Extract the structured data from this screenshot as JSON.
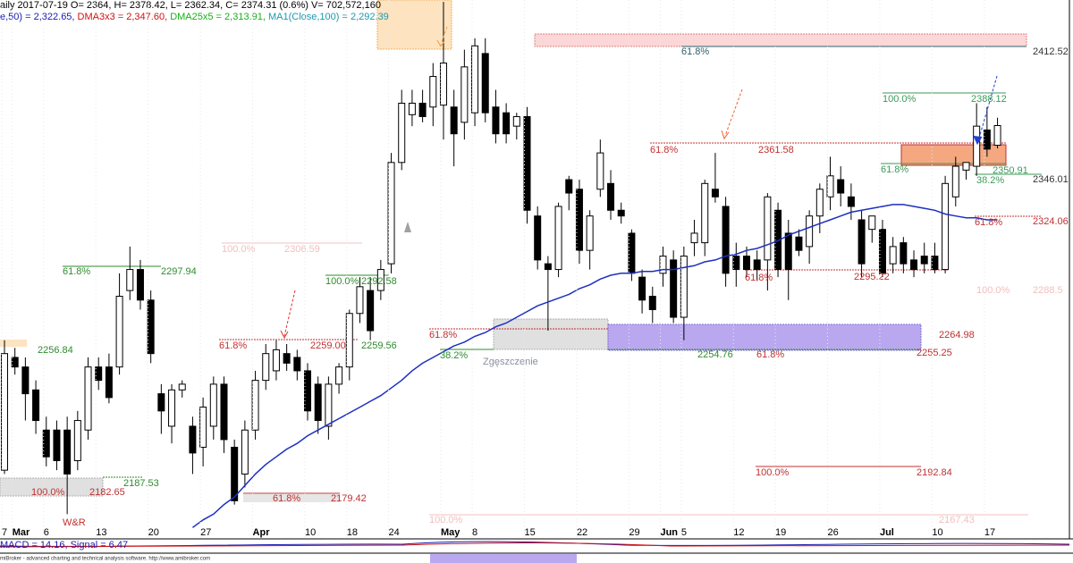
{
  "chart_data": {
    "type": "candlestick",
    "header": [
      [
        {
          "text": "aily 2017-07-19 O= 2364, H= 2378.42, L= 2362.34, C= 2374.31 (0.6%) V= 702,572,160",
          "color": "#000000"
        }
      ],
      [
        {
          "text": "e,50) = 2,322.65, ",
          "color": "#1a1ab0"
        },
        {
          "text": "DMA3x3 = 2,347.60, ",
          "color": "#d01010"
        },
        {
          "text": "DMA25x5 = 2,313.91, ",
          "color": "#18b018"
        },
        {
          "text": "MA1(Close,100) = 2,292.39",
          "color": "#1a9ab0"
        }
      ]
    ],
    "categories": [
      "7",
      "Mar",
      null,
      null,
      "6",
      null,
      null,
      null,
      null,
      "13",
      null,
      null,
      null,
      null,
      "20",
      null,
      null,
      null,
      null,
      "27",
      null,
      null,
      null,
      null,
      "Apr",
      null,
      null,
      null,
      null,
      "10",
      null,
      null,
      null,
      "18",
      null,
      null,
      null,
      "24",
      null,
      null,
      null,
      null,
      "May",
      null,
      null,
      "8",
      null,
      null,
      null,
      null,
      "15",
      null,
      null,
      null,
      null,
      "22",
      null,
      null,
      null,
      null,
      "29",
      null,
      null,
      "Jun",
      null,
      "5",
      null,
      null,
      null,
      null,
      "12",
      null,
      null,
      null,
      "19",
      null,
      null,
      null,
      null,
      "26",
      null,
      null,
      null,
      null,
      "Jul",
      null,
      null,
      null,
      null,
      "10",
      null,
      null,
      null,
      null,
      "17",
      null
    ],
    "open": [
      2194,
      2253,
      2248,
      2236,
      2215,
      2215,
      2215,
      2199,
      2215,
      2248,
      2248,
      2248,
      2288,
      2299,
      2283,
      2234,
      2217,
      2236,
      2217,
      2206,
      2217,
      2239,
      2206,
      2192,
      2215,
      2241,
      2246,
      2255,
      2253,
      2246,
      2239,
      2217,
      2239,
      2248,
      2276,
      2288,
      2288,
      2302,
      2355,
      2380,
      2386,
      2384,
      2385,
      2384,
      2376,
      2381,
      2412,
      2384,
      2381,
      2374,
      2379,
      2327,
      2302,
      2299,
      2346,
      2341,
      2309,
      2341,
      2344,
      2330,
      2318,
      2295,
      2285,
      2297,
      2304,
      2274,
      2313,
      2313,
      2341,
      2332,
      2306,
      2306,
      2304,
      2304,
      2330,
      2318,
      2316,
      2311,
      2327,
      2337,
      2346,
      2337,
      2325,
      2320,
      2320,
      2302,
      2313,
      2304,
      2306,
      2306,
      2299,
      2337,
      2351,
      2353,
      2372,
      2364
    ],
    "high": [
      2262,
      2258,
      2253,
      2241,
      2222,
      2220,
      2222,
      2225,
      2253,
      2253,
      2255,
      2297,
      2311,
      2304,
      2288,
      2239,
      2239,
      2241,
      2222,
      2232,
      2243,
      2243,
      2210,
      2220,
      2246,
      2260,
      2262,
      2260,
      2257,
      2250,
      2243,
      2243,
      2250,
      2278,
      2295,
      2295,
      2304,
      2360,
      2393,
      2393,
      2393,
      2407,
      2439,
      2393,
      2414,
      2420,
      2420,
      2393,
      2386,
      2381,
      2384,
      2332,
      2306,
      2334,
      2348,
      2346,
      2330,
      2367,
      2351,
      2334,
      2320,
      2299,
      2290,
      2311,
      2309,
      2311,
      2325,
      2346,
      2360,
      2337,
      2313,
      2311,
      2309,
      2339,
      2334,
      2325,
      2320,
      2330,
      2344,
      2358,
      2353,
      2344,
      2330,
      2327,
      2325,
      2316,
      2316,
      2309,
      2313,
      2313,
      2348,
      2358,
      2355,
      2386,
      2384,
      2378.42
    ],
    "low": [
      2192,
      2244,
      2220,
      2213,
      2196,
      2194,
      2171,
      2194,
      2210,
      2236,
      2229,
      2244,
      2283,
      2278,
      2250,
      2213,
      2208,
      2232,
      2192,
      2196,
      2210,
      2203,
      2176,
      2185,
      2210,
      2236,
      2241,
      2246,
      2241,
      2220,
      2213,
      2210,
      2234,
      2241,
      2271,
      2262,
      2283,
      2297,
      2351,
      2374,
      2376,
      2374,
      2367,
      2353,
      2367,
      2374,
      2376,
      2365,
      2365,
      2367,
      2323,
      2299,
      2267,
      2295,
      2330,
      2302,
      2299,
      2337,
      2325,
      2323,
      2293,
      2276,
      2271,
      2290,
      2271,
      2262,
      2306,
      2306,
      2334,
      2290,
      2290,
      2295,
      2293,
      2288,
      2295,
      2283,
      2306,
      2302,
      2318,
      2330,
      2332,
      2325,
      2295,
      2313,
      2295,
      2297,
      2297,
      2295,
      2297,
      2297,
      2297,
      2332,
      2346,
      2348,
      2358,
      2362.34
    ],
    "close": [
      2255,
      2248,
      2234,
      2220,
      2201,
      2199,
      2192,
      2220,
      2248,
      2241,
      2232,
      2285,
      2299,
      2283,
      2255,
      2225,
      2236,
      2239,
      2203,
      2227,
      2239,
      2210,
      2178,
      2215,
      2241,
      2255,
      2257,
      2250,
      2246,
      2225,
      2220,
      2239,
      2248,
      2276,
      2290,
      2267,
      2299,
      2355,
      2386,
      2386,
      2379,
      2400,
      2407,
      2370,
      2405,
      2416,
      2381,
      2370,
      2370,
      2379,
      2330,
      2304,
      2299,
      2332,
      2339,
      2309,
      2327,
      2360,
      2330,
      2327,
      2297,
      2283,
      2278,
      2306,
      2274,
      2306,
      2318,
      2344,
      2337,
      2297,
      2299,
      2299,
      2299,
      2337,
      2299,
      2299,
      2309,
      2327,
      2341,
      2348,
      2339,
      2332,
      2302,
      2327,
      2297,
      2311,
      2302,
      2299,
      2302,
      2299,
      2344,
      2353,
      2355,
      2374,
      2362,
      2374.31
    ],
    "up_color": "#ffffff",
    "down_color": "#000000",
    "ma": {
      "color": "#1c2fc0",
      "values": [
        null,
        null,
        null,
        null,
        null,
        null,
        null,
        null,
        null,
        null,
        null,
        null,
        null,
        null,
        null,
        null,
        null,
        null,
        2164,
        2168,
        2171,
        2176,
        2180,
        2186,
        2192,
        2197,
        2201,
        2205,
        2208,
        2212,
        2215,
        2218,
        2221,
        2224,
        2227,
        2230,
        2233,
        2237,
        2241,
        2246,
        2250,
        2253,
        2256,
        2259,
        2261,
        2264,
        2266,
        2269,
        2271,
        2274,
        2277,
        2280,
        2282,
        2284,
        2286,
        2289,
        2291,
        2294,
        2296,
        2297,
        2297,
        2298,
        2298,
        2299,
        2299,
        2300,
        2301,
        2303,
        2304,
        2306,
        2307,
        2309,
        2310,
        2312,
        2314,
        2317,
        2319,
        2321,
        2323,
        2325,
        2327,
        2329,
        2330,
        2331,
        2332,
        2333,
        2333,
        2332,
        2331,
        2330,
        2328,
        2327,
        2326,
        2326,
        2325,
        2325
      ]
    },
    "ylim": [
      2159,
      2440
    ],
    "annotations": [
      {
        "text": "61.8%",
        "color": "#2f5f6f"
      },
      {
        "text": "2412.52",
        "color": "#333333"
      },
      {
        "text": "100.0%",
        "color": "#3a9a5a"
      },
      {
        "text": "2388.12",
        "color": "#3a9a5a"
      },
      {
        "text": "61.8%",
        "color": "#c03030"
      },
      {
        "text": "2361.58",
        "color": "#c03030"
      },
      {
        "text": "61.8%",
        "color": "#3a9a5a"
      },
      {
        "text": "2350.91",
        "color": "#3a9a5a"
      },
      {
        "text": "38.2%",
        "color": "#3a9a5a"
      },
      {
        "text": "2346.01",
        "color": "#333333"
      },
      {
        "text": "61.8%",
        "color": "#c03030"
      },
      {
        "text": "2324.06",
        "color": "#c03030"
      },
      {
        "text": "100.0%",
        "color": "#f0c0c0"
      },
      {
        "text": "2306.59",
        "color": "#f0c0c0"
      },
      {
        "text": "61.8%",
        "color": "#2e8b2e"
      },
      {
        "text": "2297.94",
        "color": "#2e8b2e"
      },
      {
        "text": "100.0%",
        "color": "#2e8b2e"
      },
      {
        "text": "2292.58",
        "color": "#2e8b2e"
      },
      {
        "text": "61.8%",
        "color": "#c03030"
      },
      {
        "text": "2295.22",
        "color": "#c03030"
      },
      {
        "text": "100.0%",
        "color": "#f0c0c0"
      },
      {
        "text": "2288.5",
        "color": "#f0c0c0"
      },
      {
        "text": "61.8%",
        "color": "#c03030"
      },
      {
        "text": "2264.98",
        "color": "#c03030"
      },
      {
        "text": "61.8%",
        "color": "#c03030"
      },
      {
        "text": "2259.00",
        "color": "#c03030"
      },
      {
        "text": "2259.56",
        "color": "#2e8b2e"
      },
      {
        "text": "2256.84",
        "color": "#2e8b2e"
      },
      {
        "text": "38.2%",
        "color": "#2e8b2e"
      },
      {
        "text": "Zgęszczenie",
        "color": "#8890a0"
      },
      {
        "text": "2254.76",
        "color": "#2e8b2e"
      },
      {
        "text": "61.8%",
        "color": "#c03030"
      },
      {
        "text": "2255.25",
        "color": "#c03030"
      },
      {
        "text": "2187.53",
        "color": "#2e8b2e"
      },
      {
        "text": "100.0%",
        "color": "#c03030"
      },
      {
        "text": "2182.65",
        "color": "#c03030"
      },
      {
        "text": "100.0%",
        "color": "#c03030"
      },
      {
        "text": "2192.84",
        "color": "#c03030"
      },
      {
        "text": "61.8%",
        "color": "#c03030"
      },
      {
        "text": "2179.42",
        "color": "#c03030"
      },
      {
        "text": "W&R",
        "color": "#c03030"
      },
      {
        "text": "100.0%",
        "color": "#f0c0c0"
      },
      {
        "text": "2167.43",
        "color": "#f0c0c0"
      }
    ],
    "macd": {
      "text": "MACD = 14.16, Signal = 6.47",
      "color": "#1a1ab0"
    },
    "footer": "miBroker - advanced charting and technical analysis software. http://www.amibroker.com"
  }
}
